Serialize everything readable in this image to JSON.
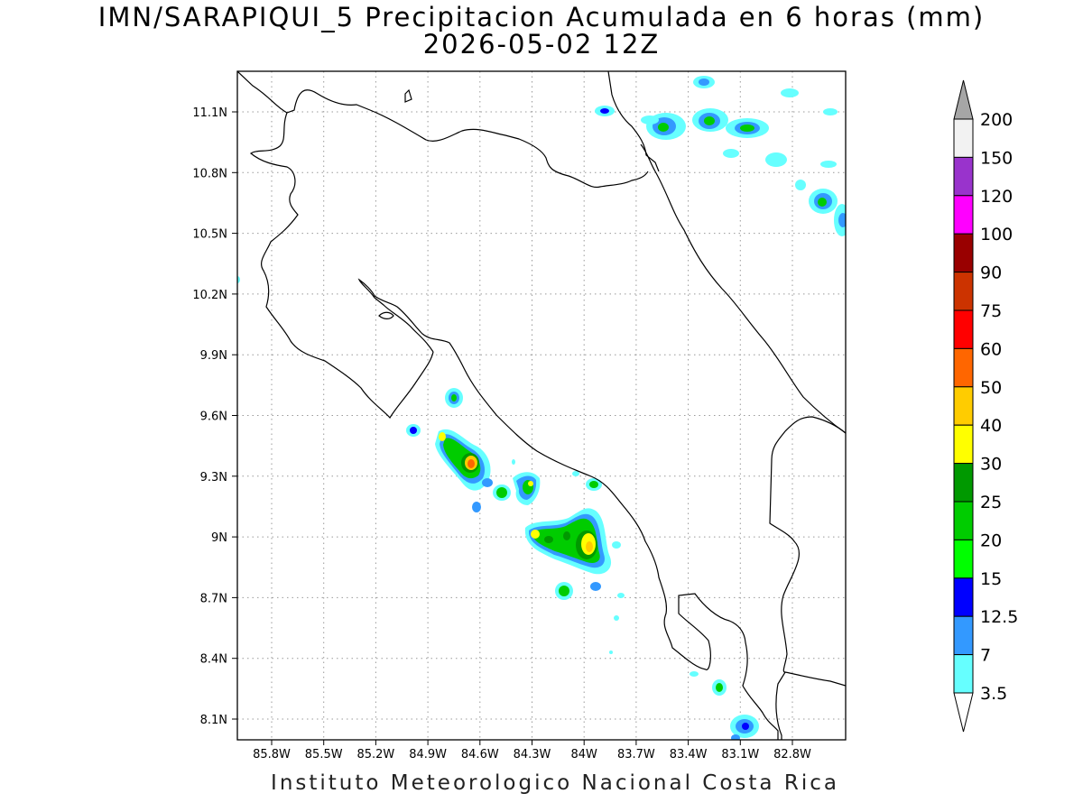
{
  "title": {
    "line1": "IMN/SARAPIQUI_5 Precipitacion Acumulada en 6 horas (mm)",
    "line2": "2026-05-02 12Z"
  },
  "footer": "Instituto Meteorologico Nacional Costa Rica",
  "map": {
    "lon_range": [
      -86.03,
      -82.42
    ],
    "lat_range": [
      7.95,
      11.28
    ],
    "x_ticks": [
      "85.8W",
      "85.5W",
      "85.2W",
      "84.9W",
      "84.6W",
      "84.3W",
      "84W",
      "83.7W",
      "83.4W",
      "83.1W",
      "82.8W"
    ],
    "y_ticks": [
      "11.1N",
      "10.8N",
      "10.5N",
      "10.2N",
      "9.9N",
      "9.6N",
      "9.3N",
      "9N",
      "8.7N",
      "8.4N",
      "8.1N"
    ],
    "grid": true
  },
  "colorbar": {
    "labels": [
      "200",
      "150",
      "120",
      "100",
      "90",
      "75",
      "60",
      "50",
      "40",
      "30",
      "25",
      "20",
      "15",
      "12.5",
      "7",
      "3.5"
    ],
    "colors": [
      "#f2f2f2",
      "#9933cc",
      "#ff00ff",
      "#990000",
      "#cc3300",
      "#ff0000",
      "#ff6600",
      "#ffcc00",
      "#ffff00",
      "#009900",
      "#00cc00",
      "#00ff00",
      "#0000ff",
      "#3399ff",
      "#66ffff"
    ],
    "top_arrow_color": "#a6a6a6",
    "bottom_arrow_color": "#ffffff"
  }
}
